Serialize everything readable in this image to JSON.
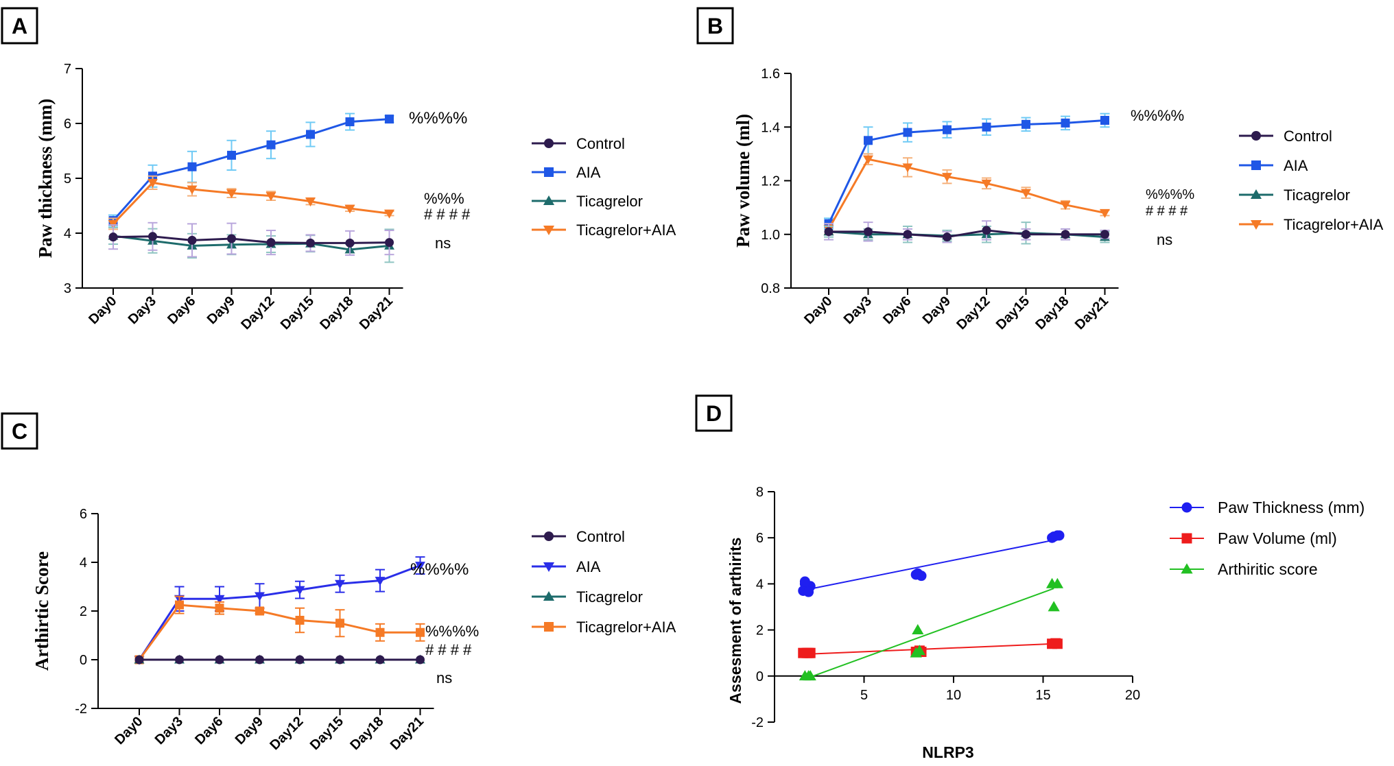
{
  "chart_data": [
    {
      "panel": "A",
      "type": "line",
      "ylabel": "Paw thickness (mm)",
      "xlabel": "",
      "categories": [
        "Day0",
        "Day3",
        "Day6",
        "Day9",
        "Day12",
        "Day15",
        "Day18",
        "Day21"
      ],
      "ylim": [
        3,
        7
      ],
      "yticks": [
        3,
        4,
        5,
        6,
        7
      ],
      "series": [
        {
          "name": "Control",
          "color": "#2d1b4e",
          "errcolor": "#b9a6dc",
          "marker": "circle",
          "values": [
            3.93,
            3.94,
            3.87,
            3.9,
            3.83,
            3.82,
            3.82,
            3.83
          ],
          "errors": [
            0.22,
            0.25,
            0.3,
            0.28,
            0.22,
            0.15,
            0.22,
            0.22
          ]
        },
        {
          "name": "AIA",
          "color": "#1f57e6",
          "errcolor": "#6fcaf5",
          "marker": "square",
          "values": [
            4.23,
            5.04,
            5.21,
            5.42,
            5.61,
            5.8,
            6.03,
            6.08
          ],
          "errors": [
            0.1,
            0.2,
            0.28,
            0.27,
            0.25,
            0.22,
            0.15,
            0.06
          ]
        },
        {
          "name": "Ticagrelor",
          "color": "#1d6b6b",
          "errcolor": "#8fc5c2",
          "marker": "triangle",
          "values": [
            3.95,
            3.86,
            3.77,
            3.79,
            3.8,
            3.81,
            3.7,
            3.77
          ],
          "errors": [
            0.15,
            0.22,
            0.22,
            0.18,
            0.15,
            0.15,
            0.1,
            0.3
          ]
        },
        {
          "name": "Ticagrelor+AIA",
          "color": "#f57a26",
          "errcolor": "#f5b07a",
          "marker": "triangle-down",
          "values": [
            4.17,
            4.92,
            4.8,
            4.73,
            4.68,
            4.58,
            4.45,
            4.36
          ],
          "errors": [
            0.1,
            0.12,
            0.12,
            0.08,
            0.08,
            0.06,
            0.05,
            0.04
          ]
        }
      ],
      "annotations": [
        {
          "text": "%%%%",
          "series": "AIA"
        },
        {
          "text": "%%%",
          "series": "Ticagrelor+AIA",
          "line": 1
        },
        {
          "text": "####",
          "series": "Ticagrelor+AIA",
          "line": 2
        },
        {
          "text": "ns",
          "series": "Control"
        }
      ],
      "legend": [
        "Control",
        "AIA",
        "Ticagrelor",
        "Ticagrelor+AIA"
      ]
    },
    {
      "panel": "B",
      "type": "line",
      "ylabel": "Paw volume (ml)",
      "xlabel": "",
      "categories": [
        "Day0",
        "Day3",
        "Day6",
        "Day9",
        "Day12",
        "Day15",
        "Day18",
        "Day21"
      ],
      "ylim": [
        0.8,
        1.6
      ],
      "yticks": [
        0.8,
        1.0,
        1.2,
        1.4,
        1.6
      ],
      "series": [
        {
          "name": "Control",
          "color": "#2d1b4e",
          "errcolor": "#b9a6dc",
          "marker": "circle",
          "values": [
            1.01,
            1.01,
            1.0,
            0.99,
            1.015,
            1.0,
            1.0,
            1.0
          ],
          "errors": [
            0.03,
            0.035,
            0.02,
            0.02,
            0.035,
            0.02,
            0.02,
            0.015
          ]
        },
        {
          "name": "AIA",
          "color": "#1f57e6",
          "errcolor": "#6fcaf5",
          "marker": "square",
          "values": [
            1.04,
            1.35,
            1.38,
            1.39,
            1.4,
            1.41,
            1.415,
            1.425
          ],
          "errors": [
            0.02,
            0.05,
            0.035,
            0.03,
            0.03,
            0.025,
            0.025,
            0.025
          ]
        },
        {
          "name": "Ticagrelor",
          "color": "#1d6b6b",
          "errcolor": "#8fc5c2",
          "marker": "triangle",
          "values": [
            1.01,
            1.0,
            1.0,
            0.995,
            1.0,
            1.005,
            1.0,
            0.99
          ],
          "errors": [
            0.02,
            0.02,
            0.03,
            0.02,
            0.03,
            0.04,
            0.02,
            0.02
          ]
        },
        {
          "name": "Ticagrelor+AIA",
          "color": "#f57a26",
          "errcolor": "#f5b07a",
          "marker": "triangle-down",
          "values": [
            1.02,
            1.28,
            1.25,
            1.215,
            1.19,
            1.155,
            1.11,
            1.08
          ],
          "errors": [
            0.02,
            0.02,
            0.035,
            0.025,
            0.02,
            0.02,
            0.015,
            0.01
          ]
        }
      ],
      "annotations": [
        {
          "text": "%%%%",
          "series": "AIA"
        },
        {
          "text": "%%%%",
          "series": "Ticagrelor+AIA",
          "line": 1
        },
        {
          "text": "####",
          "series": "Ticagrelor+AIA",
          "line": 2
        },
        {
          "text": "ns",
          "series": "Control"
        }
      ],
      "legend": [
        "Control",
        "AIA",
        "Ticagrelor",
        "Ticagrelor+AIA"
      ]
    },
    {
      "panel": "C",
      "type": "line",
      "ylabel": "Arthirtic Score",
      "xlabel": "",
      "categories": [
        "Day0",
        "Day3",
        "Day6",
        "Day9",
        "Day12",
        "Day15",
        "Day18",
        "Day21"
      ],
      "ylim": [
        -2,
        6
      ],
      "yticks": [
        -2,
        0,
        2,
        4,
        6
      ],
      "series": [
        {
          "name": "Control",
          "color": "#2d1b4e",
          "errcolor": "#b9a6dc",
          "marker": "circle",
          "values": [
            0,
            0,
            0,
            0,
            0,
            0,
            0,
            0
          ],
          "errors": [
            0,
            0,
            0,
            0,
            0,
            0,
            0,
            0
          ]
        },
        {
          "name": "AIA",
          "color": "#2a2ee8",
          "errcolor": "#2a2ee8",
          "marker": "triangle-down",
          "values": [
            0,
            2.5,
            2.5,
            2.62,
            2.87,
            3.12,
            3.25,
            3.87
          ],
          "errors": [
            0,
            0.5,
            0.5,
            0.5,
            0.35,
            0.35,
            0.45,
            0.35
          ]
        },
        {
          "name": "Ticagrelor",
          "color": "#1d6b6b",
          "errcolor": "#8fc5c2",
          "marker": "triangle",
          "values": [
            0,
            0,
            0,
            0,
            0,
            0,
            0,
            0
          ],
          "errors": [
            0,
            0,
            0,
            0,
            0,
            0,
            0,
            0
          ]
        },
        {
          "name": "Ticagrelor+AIA",
          "color": "#f57a26",
          "errcolor": "#f57a26",
          "marker": "square",
          "values": [
            0,
            2.25,
            2.12,
            2.0,
            1.62,
            1.5,
            1.12,
            1.12
          ],
          "errors": [
            0,
            0.35,
            0.25,
            0.1,
            0.5,
            0.55,
            0.35,
            0.35
          ]
        }
      ],
      "annotations": [
        {
          "text": "%%%%",
          "series": "AIA"
        },
        {
          "text": "%%%%",
          "series": "Ticagrelor+AIA",
          "line": 1
        },
        {
          "text": "####",
          "series": "Ticagrelor+AIA",
          "line": 2
        },
        {
          "text": "ns",
          "series": "Control"
        }
      ],
      "legend": [
        "Control",
        "AIA",
        "Ticagrelor",
        "Ticagrelor+AIA"
      ]
    },
    {
      "panel": "D",
      "type": "scatter",
      "xlabel": "NLRP3",
      "ylabel": "Assesment of arthirits",
      "xlim": [
        0,
        20
      ],
      "ylim": [
        -2,
        8
      ],
      "xticks": [
        5,
        10,
        15,
        20
      ],
      "yticks": [
        -2,
        0,
        2,
        4,
        6,
        8
      ],
      "series": [
        {
          "name": "Paw Thickness (mm)",
          "color": "#1f1ff0",
          "marker": "circle",
          "points": [
            [
              1.7,
              4.0
            ],
            [
              1.8,
              3.8
            ],
            [
              1.6,
              3.7
            ],
            [
              2.0,
              3.9
            ],
            [
              1.9,
              3.65
            ],
            [
              1.7,
              4.1
            ],
            [
              7.9,
              4.4
            ],
            [
              8.2,
              4.35
            ],
            [
              8.0,
              4.45
            ],
            [
              15.5,
              6.0
            ],
            [
              15.8,
              6.1
            ],
            [
              15.6,
              6.05
            ],
            [
              15.9,
              6.1
            ]
          ],
          "fit": [
            [
              2.0,
              3.78
            ],
            [
              15.6,
              5.9
            ]
          ]
        },
        {
          "name": "Paw Volume (ml)",
          "color": "#ee1c1c",
          "marker": "square",
          "points": [
            [
              1.6,
              1.0
            ],
            [
              1.8,
              1.0
            ],
            [
              2.0,
              1.0
            ],
            [
              1.9,
              1.0
            ],
            [
              7.9,
              1.05
            ],
            [
              8.1,
              1.1
            ],
            [
              8.2,
              1.05
            ],
            [
              15.5,
              1.4
            ],
            [
              15.8,
              1.4
            ],
            [
              15.7,
              1.42
            ]
          ],
          "fit": [
            [
              1.8,
              0.95
            ],
            [
              15.6,
              1.4
            ]
          ]
        },
        {
          "name": "Arthiritic score",
          "color": "#22c022",
          "marker": "triangle",
          "points": [
            [
              1.7,
              0
            ],
            [
              1.9,
              0
            ],
            [
              2.0,
              0
            ],
            [
              8.0,
              2.0
            ],
            [
              8.1,
              1.1
            ],
            [
              7.9,
              1.0
            ],
            [
              15.5,
              4.0
            ],
            [
              15.8,
              4.0
            ],
            [
              15.6,
              3.0
            ]
          ],
          "fit": [
            [
              1.8,
              -0.1
            ],
            [
              15.6,
              3.8
            ]
          ]
        }
      ],
      "legend": [
        "Paw Thickness (mm)",
        "Paw Volume (ml)",
        "Arthiritic score"
      ]
    }
  ]
}
